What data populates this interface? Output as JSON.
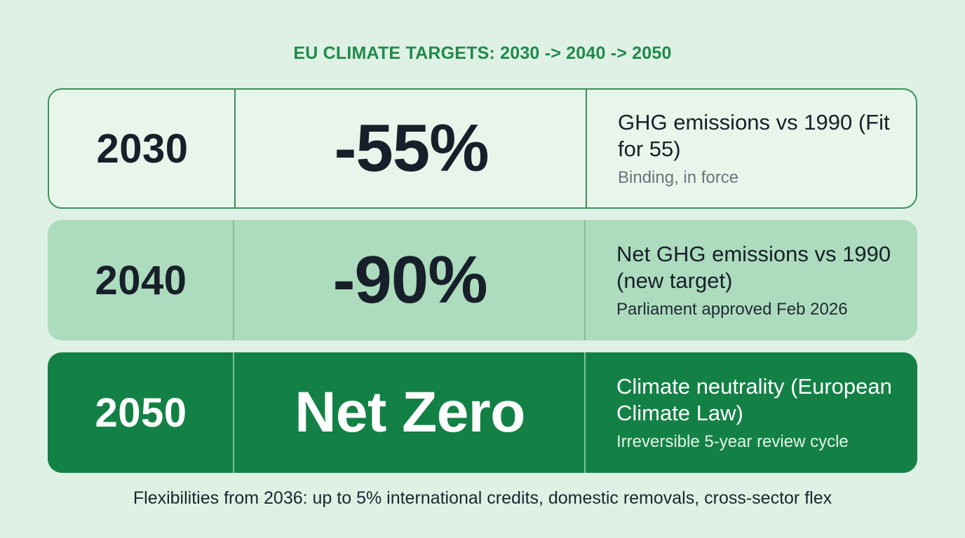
{
  "title": "EU CLIMATE TARGETS: 2030 -> 2040 -> 2050",
  "targets": [
    {
      "year": "2030",
      "value": "-55%",
      "description": "GHG emissions vs 1990 (Fit for 55)",
      "status": "Binding, in force"
    },
    {
      "year": "2040",
      "value": "-90%",
      "description": "Net GHG emissions vs 1990 (new target)",
      "status": "Parliament approved Feb 2026"
    },
    {
      "year": "2050",
      "value": "Net Zero",
      "description": "Climate neutrality (European Climate Law)",
      "status": "Irreversible 5-year review cycle"
    }
  ],
  "footer": "Flexibilities from 2036: up to 5% international credits, domestic removals, cross-sector flex",
  "colors": {
    "background": "#dff1e4",
    "title": "#1f8a4c",
    "row_2030_fill": "#e8f5ea",
    "row_2040_fill": "#acdbbd",
    "row_2050_fill": "#138145",
    "dark_text": "#17202a"
  }
}
